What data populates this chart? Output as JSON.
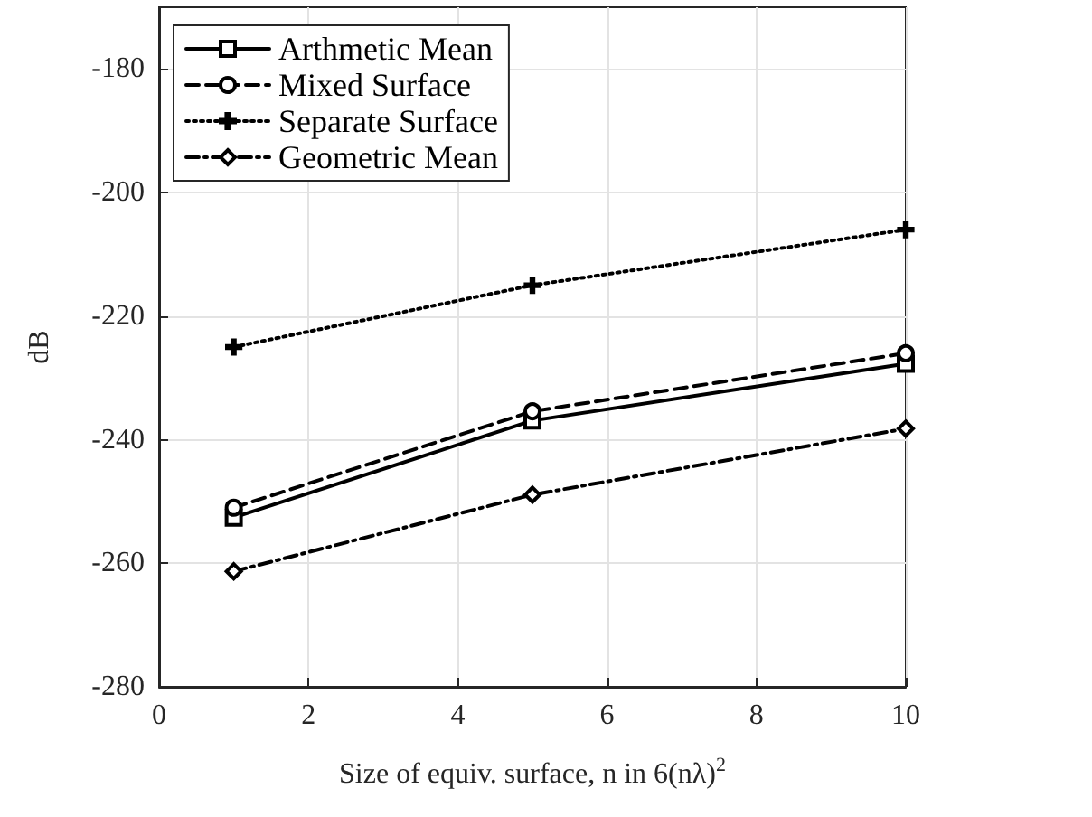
{
  "chart_data": {
    "type": "line",
    "xlabel": "Size of equiv. surface, n in 6(nλ)$^{2}$",
    "ylabel": "dB",
    "x": [
      1,
      5,
      10
    ],
    "xlim": [
      0,
      10
    ],
    "xticks": [
      0,
      2,
      4,
      6,
      8,
      10
    ],
    "ylim": [
      -280,
      -170
    ],
    "yticks": [
      -280,
      -260,
      -240,
      -220,
      -200,
      -180
    ],
    "grid": true,
    "legend": "top left",
    "series": [
      {
        "name": "Arthmetic Mean",
        "color": "#000000",
        "values": [
          -252.6,
          -236.9,
          -227.7
        ],
        "marker": "square",
        "line_style": "solid"
      },
      {
        "name": "Mixed Surface",
        "color": "#000000",
        "values": [
          -251,
          -235.4,
          -226
        ],
        "marker": "circle",
        "line_style": "dashed"
      },
      {
        "name": "Separate Surface",
        "color": "#000000",
        "values": [
          -225,
          -215,
          -206
        ],
        "marker": "cross",
        "line_style": "dotted"
      },
      {
        "name": "Geometric Mean",
        "color": "#000000",
        "values": [
          -261.3,
          -248.9,
          -238.2
        ],
        "marker": "diamond",
        "line_style": "dashdot"
      }
    ]
  }
}
